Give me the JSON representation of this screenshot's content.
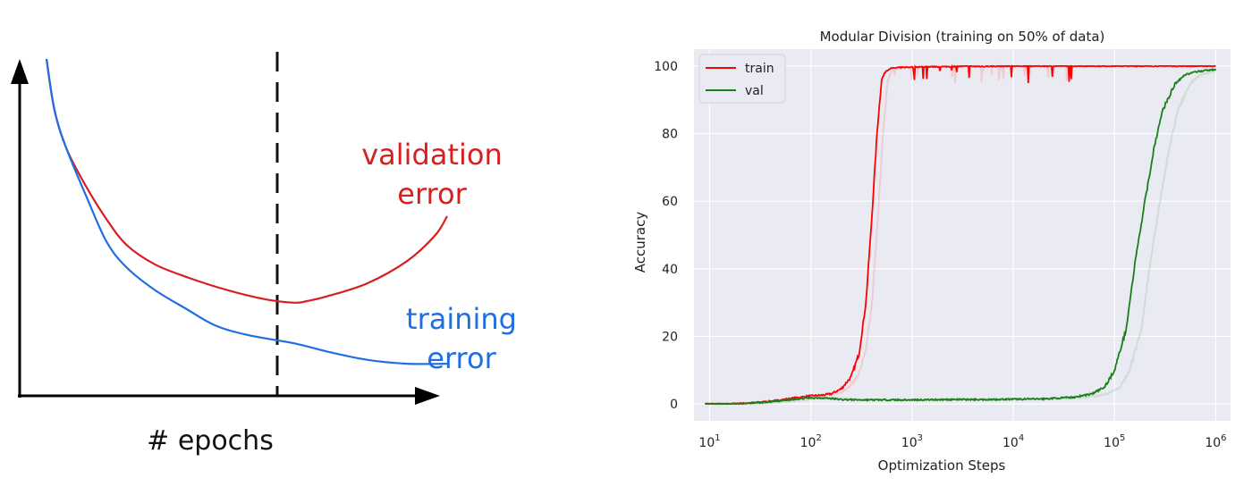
{
  "chart_data": [
    {
      "type": "line",
      "title": "",
      "xlabel": "# epochs",
      "ylabel": "",
      "grid": false,
      "annotations": [
        {
          "id": "early-stopping-line",
          "style": "dashed vertical line at minimum of validation error"
        }
      ],
      "series": [
        {
          "name": "validation error",
          "label_lines": [
            "validation",
            "error"
          ],
          "color": "#d62020",
          "x": [
            0.0,
            0.02,
            0.05,
            0.1,
            0.15,
            0.2,
            0.27,
            0.35,
            0.45,
            0.55,
            0.62,
            0.65,
            0.7,
            0.8,
            0.9,
            0.97,
            1.0
          ],
          "y": [
            1.0,
            0.84,
            0.72,
            0.6,
            0.5,
            0.42,
            0.36,
            0.32,
            0.28,
            0.25,
            0.24,
            0.245,
            0.26,
            0.3,
            0.37,
            0.45,
            0.51
          ]
        },
        {
          "name": "training error",
          "label_lines": [
            "training",
            "error"
          ],
          "color": "#1f6fe0",
          "x": [
            0.0,
            0.02,
            0.05,
            0.1,
            0.15,
            0.2,
            0.27,
            0.35,
            0.42,
            0.5,
            0.62,
            0.7,
            0.8,
            0.9,
            1.0
          ],
          "y": [
            1.0,
            0.84,
            0.72,
            0.57,
            0.43,
            0.35,
            0.28,
            0.22,
            0.17,
            0.14,
            0.113,
            0.088,
            0.062,
            0.05,
            0.05
          ]
        }
      ]
    },
    {
      "type": "line",
      "title": "Modular Division (training on 50% of data)",
      "xlabel": "Optimization Steps",
      "ylabel": "Accuracy",
      "x_scale": "log",
      "xlim": [
        7,
        1400000
      ],
      "ylim": [
        -5,
        105
      ],
      "x_ticks": [
        10,
        100,
        1000,
        10000,
        100000,
        1000000
      ],
      "x_tick_labels": [
        {
          "base": "10",
          "exp": "1"
        },
        {
          "base": "10",
          "exp": "2"
        },
        {
          "base": "10",
          "exp": "3"
        },
        {
          "base": "10",
          "exp": "4"
        },
        {
          "base": "10",
          "exp": "5"
        },
        {
          "base": "10",
          "exp": "6"
        }
      ],
      "y_ticks": [
        0,
        20,
        40,
        60,
        80,
        100
      ],
      "y_tick_labels": [
        "0",
        "20",
        "40",
        "60",
        "80",
        "100"
      ],
      "grid": true,
      "legend_position": "top-left",
      "background": "#eaeaf2",
      "series": [
        {
          "name": "train",
          "color": "#ff0000",
          "x": [
            9,
            15,
            25,
            40,
            60,
            80,
            100,
            130,
            160,
            200,
            250,
            300,
            350,
            400,
            450,
            500,
            550,
            600,
            700,
            800,
            1000,
            1500,
            2000,
            3000,
            5000,
            10000,
            20000,
            50000,
            100000,
            200000,
            500000,
            1000000
          ],
          "y": [
            0,
            0,
            0.3,
            0.8,
            1.5,
            2.0,
            2.4,
            2.6,
            3.0,
            4.5,
            8,
            15,
            30,
            55,
            80,
            96,
            98.5,
            99.2,
            99.5,
            99.6,
            99.7,
            99.8,
            99.8,
            99.9,
            99.9,
            100,
            100,
            100,
            100,
            100,
            100,
            100
          ]
        },
        {
          "name": "val",
          "color": "#1a7f1a",
          "x": [
            9,
            15,
            25,
            40,
            60,
            80,
            100,
            130,
            160,
            200,
            300,
            500,
            1000,
            2000,
            5000,
            10000,
            20000,
            40000,
            60000,
            80000,
            100000,
            130000,
            160000,
            200000,
            250000,
            300000,
            400000,
            500000,
            700000,
            1000000
          ],
          "y": [
            0,
            0,
            0.2,
            0.6,
            1.2,
            1.6,
            1.8,
            1.8,
            1.6,
            1.3,
            1.2,
            1.2,
            1.2,
            1.3,
            1.3,
            1.4,
            1.5,
            2.0,
            3.0,
            5.0,
            10,
            22,
            42,
            60,
            77,
            87,
            95,
            97.5,
            98.5,
            99
          ]
        }
      ]
    }
  ]
}
